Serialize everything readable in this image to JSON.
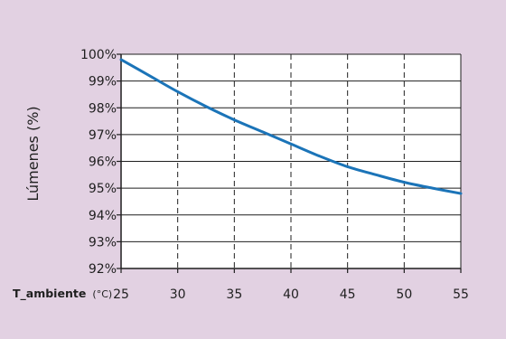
{
  "colors": {
    "background": "#e2d1e2",
    "plot_area": "#ffffff",
    "axis": "#1f1f1f",
    "gridline": "#1f1f1f",
    "series_line": "#1b74b8"
  },
  "chart_data": {
    "type": "line",
    "title": "",
    "ylabel": "Lúmenes  (%)",
    "xlabel": "T_ambiente",
    "xlabel_unit": "(°C)",
    "xlim": [
      25,
      55
    ],
    "ylim": [
      92,
      100
    ],
    "x_ticks": [
      25,
      30,
      35,
      40,
      45,
      50,
      55
    ],
    "x_tick_labels": [
      "25",
      "30",
      "35",
      "40",
      "45",
      "50",
      "55"
    ],
    "y_ticks": [
      92,
      93,
      94,
      95,
      96,
      97,
      98,
      99,
      100
    ],
    "y_tick_labels": [
      "92%",
      "93%",
      "94%",
      "95%",
      "96%",
      "97%",
      "98%",
      "99%",
      "100%"
    ],
    "grid": {
      "horizontal": "solid",
      "vertical": "dashed"
    },
    "series": [
      {
        "x": [
          25,
          27.5,
          30,
          32.5,
          35,
          37.5,
          40,
          42.5,
          45,
          47.5,
          50,
          52.5,
          55
        ],
        "y": [
          99.8,
          99.2,
          98.6,
          98.05,
          97.55,
          97.1,
          96.65,
          96.2,
          95.8,
          95.5,
          95.22,
          95.0,
          94.8
        ]
      }
    ]
  }
}
